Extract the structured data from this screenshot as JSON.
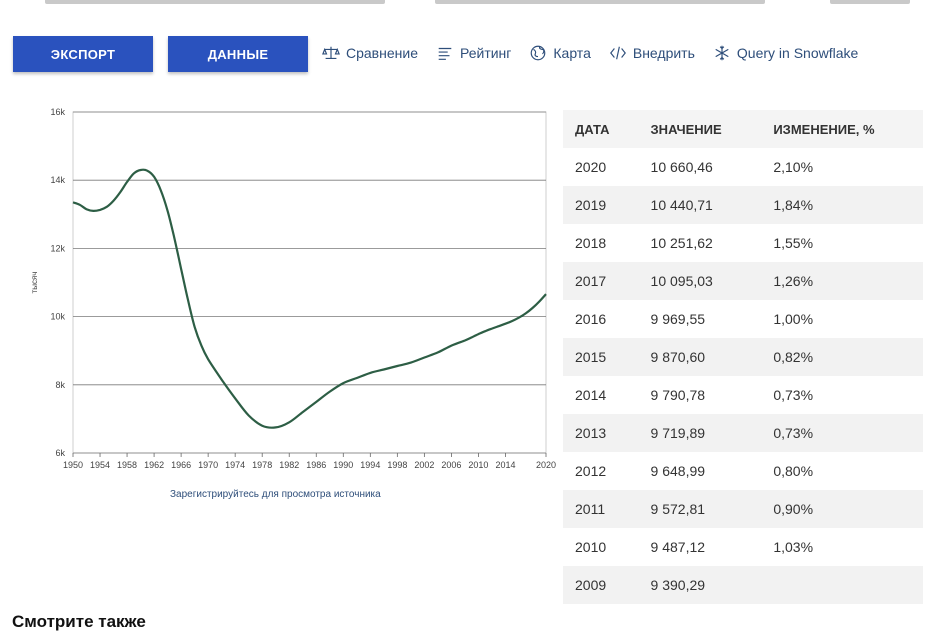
{
  "buttons": {
    "export": "ЭКСПОРТ",
    "data": "ДАННЫЕ"
  },
  "toolbar": [
    {
      "label": "Сравнение",
      "icon": "scales-icon"
    },
    {
      "label": "Рейтинг",
      "icon": "list-icon"
    },
    {
      "label": "Карта",
      "icon": "globe-icon"
    },
    {
      "label": "Внедрить",
      "icon": "code-icon"
    },
    {
      "label": "Query in Snowflake",
      "icon": "snowflake-icon"
    }
  ],
  "source_link": "Зарегистрируйтесь для просмотра источника",
  "see_also": "Смотрите также",
  "colors": {
    "accent": "#2a52be",
    "line": "#2d5e45",
    "link": "#2e4e7a"
  },
  "table": {
    "headers": [
      "ДАТА",
      "ЗНАЧЕНИЕ",
      "ИЗМЕНЕНИЕ, %"
    ],
    "rows": [
      [
        "2020",
        "10 660,46",
        "2,10%"
      ],
      [
        "2019",
        "10 440,71",
        "1,84%"
      ],
      [
        "2018",
        "10 251,62",
        "1,55%"
      ],
      [
        "2017",
        "10 095,03",
        "1,26%"
      ],
      [
        "2016",
        "9 969,55",
        "1,00%"
      ],
      [
        "2015",
        "9 870,60",
        "0,82%"
      ],
      [
        "2014",
        "9 790,78",
        "0,73%"
      ],
      [
        "2013",
        "9 719,89",
        "0,73%"
      ],
      [
        "2012",
        "9 648,99",
        "0,80%"
      ],
      [
        "2011",
        "9 572,81",
        "0,90%"
      ],
      [
        "2010",
        "9 487,12",
        "1,03%"
      ],
      [
        "2009",
        "9 390,29",
        ""
      ]
    ]
  },
  "chart_data": {
    "type": "line",
    "ylabel": "тысяч",
    "xlabel": "",
    "ylim": [
      6000,
      16000
    ],
    "xlim": [
      1950,
      2020
    ],
    "y_ticks": [
      6000,
      8000,
      10000,
      12000,
      14000,
      16000
    ],
    "y_tick_labels": [
      "6k",
      "8k",
      "10k",
      "12k",
      "14k",
      "16k"
    ],
    "x_ticks": [
      1950,
      1954,
      1958,
      1962,
      1966,
      1970,
      1974,
      1978,
      1982,
      1986,
      1990,
      1994,
      1998,
      2002,
      2006,
      2010,
      2014,
      2020
    ],
    "grid": true,
    "series": [
      {
        "x": [
          1950,
          1951,
          1952,
          1953,
          1954,
          1955,
          1956,
          1957,
          1958,
          1959,
          1960,
          1961,
          1962,
          1963,
          1964,
          1965,
          1966,
          1967,
          1968,
          1969,
          1970,
          1972,
          1974,
          1976,
          1978,
          1980,
          1982,
          1984,
          1986,
          1988,
          1990,
          1992,
          1994,
          1996,
          1998,
          2000,
          2002,
          2004,
          2006,
          2008,
          2009,
          2010,
          2011,
          2012,
          2013,
          2014,
          2015,
          2016,
          2017,
          2018,
          2019,
          2020
        ],
        "y": [
          13350,
          13280,
          13150,
          13100,
          13130,
          13220,
          13400,
          13650,
          13950,
          14200,
          14300,
          14280,
          14100,
          13700,
          13100,
          12300,
          11400,
          10500,
          9700,
          9150,
          8750,
          8150,
          7600,
          7100,
          6800,
          6750,
          6900,
          7200,
          7500,
          7800,
          8050,
          8200,
          8350,
          8450,
          8550,
          8650,
          8800,
          8950,
          9150,
          9300,
          9390.29,
          9487.12,
          9572.81,
          9648.99,
          9719.89,
          9790.78,
          9870.6,
          9969.55,
          10095.03,
          10251.62,
          10440.71,
          10660.46
        ]
      }
    ]
  }
}
